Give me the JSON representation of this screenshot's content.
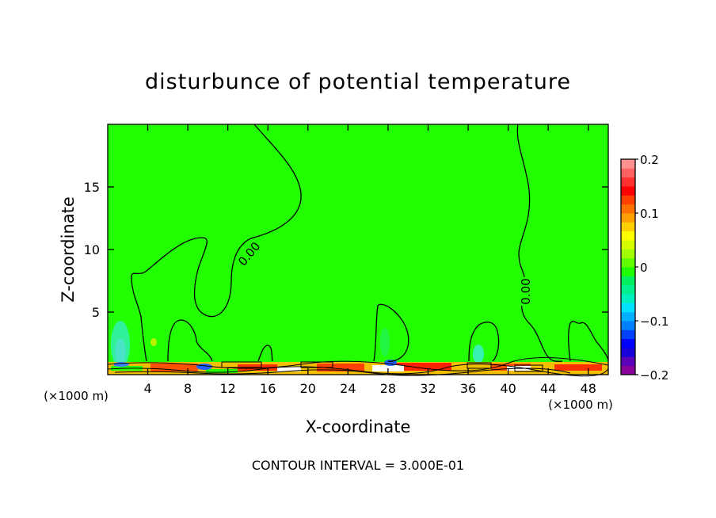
{
  "chart_data": {
    "type": "heatmap",
    "title": "disturbunce of potential temperature",
    "xlabel": "X-coordinate",
    "ylabel": "Z-coordinate",
    "x_unit_left": "(×1000 m)",
    "x_unit_right": "(×1000 m)",
    "xlim": [
      0,
      50
    ],
    "ylim": [
      0,
      20
    ],
    "x_ticks": [
      4,
      8,
      12,
      16,
      20,
      24,
      28,
      32,
      36,
      40,
      44,
      48
    ],
    "y_ticks": [
      5,
      10,
      15
    ],
    "contour_labels": [
      "0.00",
      "0.00"
    ],
    "footer": "CONTOUR INTERVAL = 3.000E-01",
    "colorbar": {
      "range": [
        -0.2,
        0.2
      ],
      "tick_values": [
        0.2,
        0.1,
        0,
        -0.1,
        -0.2
      ],
      "tick_labels": [
        "0.2",
        "0.1",
        "0",
        "−0.1",
        "−0.2"
      ],
      "colors": [
        "#8a009a",
        "#5b00b8",
        "#1800d8",
        "#0000ff",
        "#0040ff",
        "#0080ff",
        "#00b0ff",
        "#00e0ff",
        "#00f0c0",
        "#00f090",
        "#00f060",
        "#20ff00",
        "#60ff00",
        "#a0ff00",
        "#d8ff00",
        "#ffff00",
        "#ffd000",
        "#ffa000",
        "#ff7000",
        "#ff4000",
        "#ff0000",
        "#ff3030",
        "#ff6060",
        "#ff9090"
      ]
    },
    "background_color": "#22ff00",
    "contour_color": "#000000"
  }
}
